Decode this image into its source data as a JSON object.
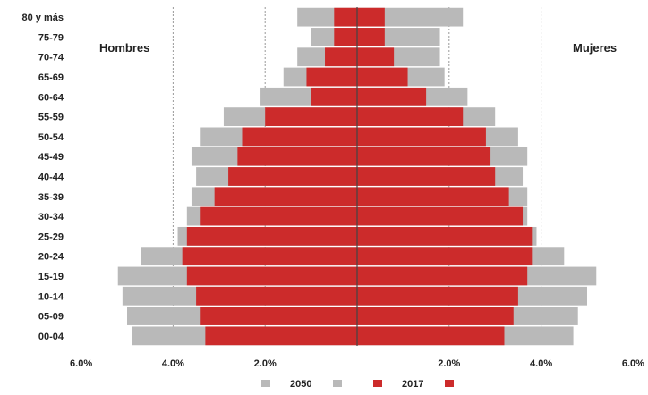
{
  "chart_data": {
    "type": "bar",
    "subtype": "population-pyramid",
    "categories": [
      "80 y más",
      "75-79",
      "70-74",
      "65-69",
      "60-64",
      "55-59",
      "50-54",
      "45-49",
      "40-44",
      "35-39",
      "30-34",
      "25-29",
      "20-24",
      "15-19",
      "10-14",
      "05-09",
      "00-04"
    ],
    "left_label": "Hombres",
    "right_label": "Mujeres",
    "x_ticks": [
      "6.0%",
      "4.0%",
      "2.0%",
      "",
      "2.0%",
      "4.0%",
      "6.0%"
    ],
    "xlim": [
      -6,
      6
    ],
    "grid": "vertical at ±2%, ±4%",
    "series": [
      {
        "name": "2050",
        "color": "#b9b9b9",
        "hombres": [
          1.3,
          1.0,
          1.3,
          1.6,
          2.1,
          2.9,
          3.4,
          3.6,
          3.5,
          3.6,
          3.7,
          3.9,
          4.7,
          5.2,
          5.1,
          5.0,
          4.9
        ],
        "mujeres": [
          2.3,
          1.8,
          1.8,
          1.9,
          2.4,
          3.0,
          3.5,
          3.7,
          3.6,
          3.7,
          3.7,
          3.9,
          4.5,
          5.2,
          5.0,
          4.8,
          4.7
        ]
      },
      {
        "name": "2017",
        "color": "#cc2b2b",
        "hombres": [
          0.5,
          0.5,
          0.7,
          1.1,
          1.0,
          2.0,
          2.5,
          2.6,
          2.8,
          3.1,
          3.4,
          3.7,
          3.8,
          3.7,
          3.5,
          3.4,
          3.3
        ],
        "mujeres": [
          0.6,
          0.6,
          0.8,
          1.1,
          1.5,
          2.3,
          2.8,
          2.9,
          3.0,
          3.3,
          3.6,
          3.8,
          3.8,
          3.7,
          3.5,
          3.4,
          3.2
        ]
      }
    ],
    "legend": {
      "placement": "bottom",
      "items": [
        {
          "text": "2050",
          "color": "#b9b9b9"
        },
        {
          "text": "2017",
          "color": "#cc2b2b"
        }
      ]
    }
  }
}
